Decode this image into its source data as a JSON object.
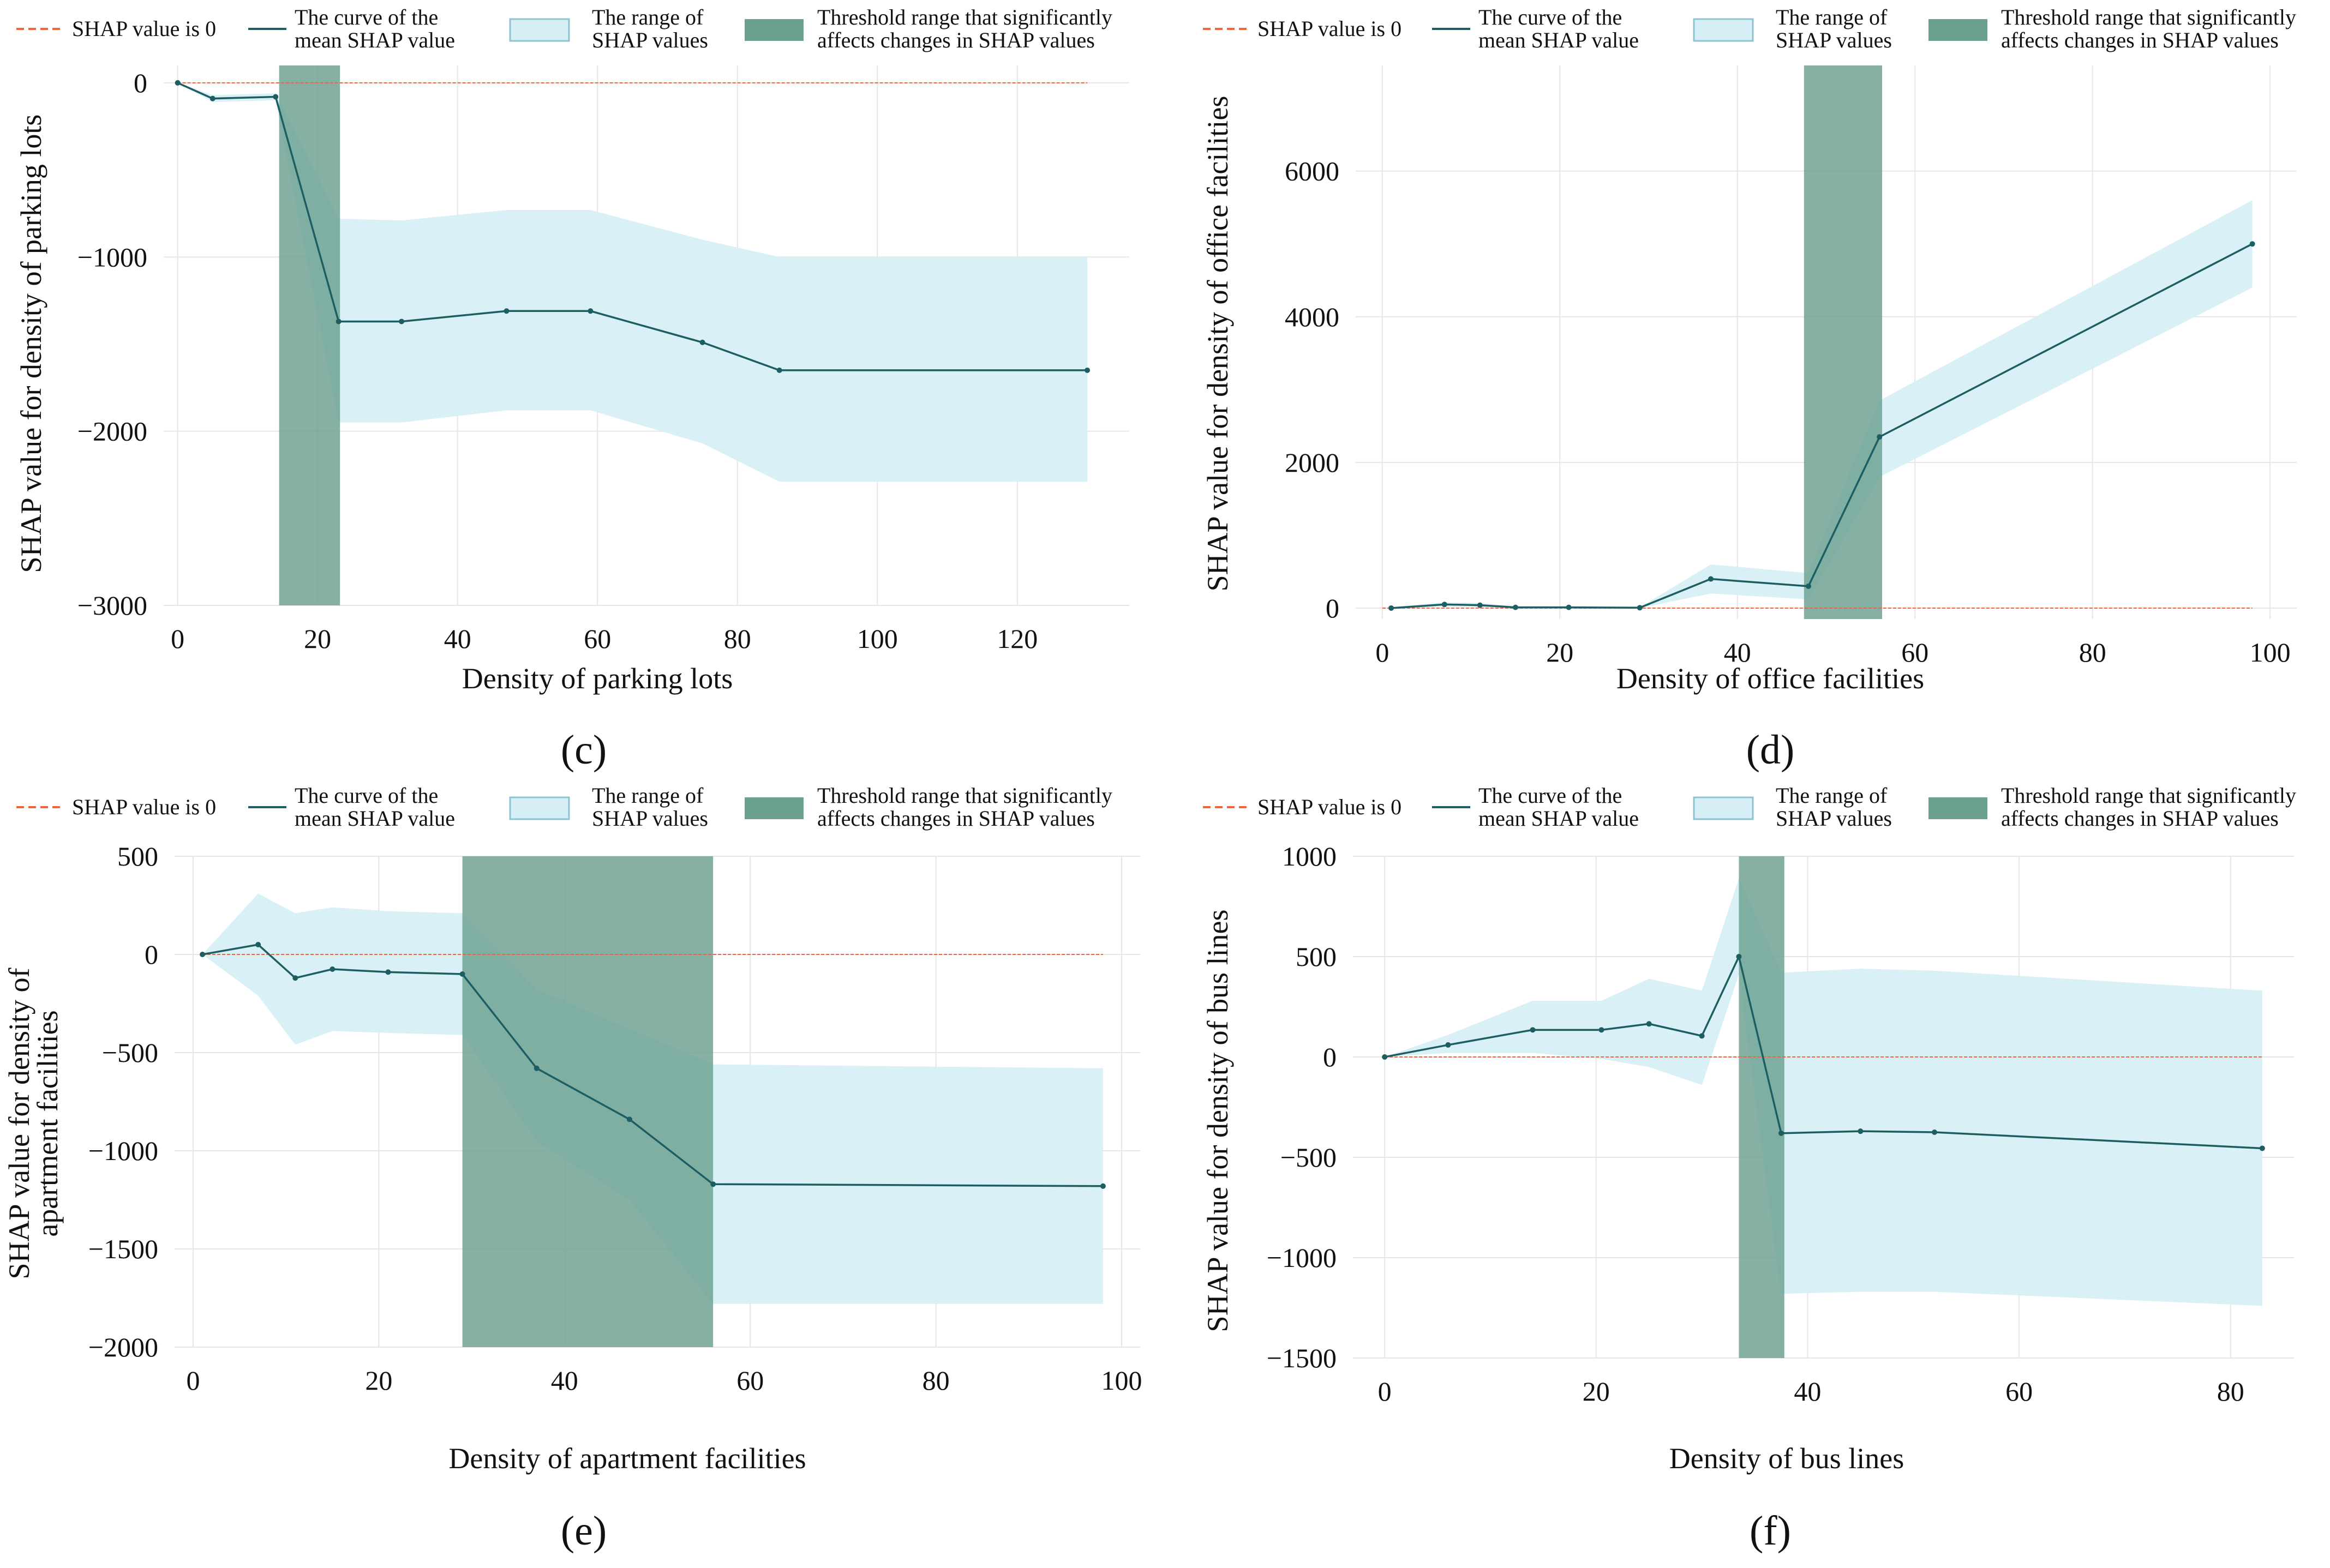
{
  "colors": {
    "zero_line": "#f2643a",
    "mean_curve": "#1c5e61",
    "range_fill": "#d6eff6",
    "range_stroke": "#8ec3cf",
    "threshold_fill": "#6b9f8f",
    "grid": "#e6e6e6",
    "text": "#111111"
  },
  "legend": {
    "zero_label": "SHAP value is 0",
    "mean_label_1": "The curve of the",
    "mean_label_2": "mean SHAP value",
    "range_label_1": "The range of",
    "range_label_2": "SHAP values",
    "threshold_label_1": "Threshold range that significantly",
    "threshold_label_2": "affects changes in SHAP values"
  },
  "chart_data": [
    {
      "panel": "(c)",
      "type": "line",
      "xlabel": "Density of parking lots",
      "ylabel": "SHAP value for density of parking lots",
      "xlim": [
        -2,
        136
      ],
      "ylim": [
        -3000,
        100
      ],
      "xticks": [
        0,
        20,
        40,
        60,
        80,
        100,
        120
      ],
      "yticks": [
        0,
        -1000,
        -2000,
        -3000
      ],
      "ytick_labels": [
        "0",
        "−1000",
        "−2000",
        "−3000"
      ],
      "zero_line_x": [
        0,
        130
      ],
      "mean_x": [
        0,
        5,
        14,
        23,
        32,
        47,
        59,
        75,
        86,
        130
      ],
      "mean_y": [
        0,
        -90,
        -80,
        -1370,
        -1370,
        -1310,
        -1310,
        -1490,
        -1650,
        -1650
      ],
      "range_x": [
        0,
        5,
        14,
        23,
        32,
        47,
        59,
        75,
        86,
        130
      ],
      "range_upper": [
        0,
        -70,
        -60,
        -780,
        -790,
        -730,
        -730,
        -900,
        -1000,
        -1000
      ],
      "range_lower": [
        0,
        -110,
        -100,
        -1950,
        -1950,
        -1880,
        -1880,
        -2070,
        -2290,
        -2290
      ],
      "threshold": [
        14.5,
        23.2
      ]
    },
    {
      "panel": "(d)",
      "type": "line",
      "xlabel": "Density of office facilities",
      "ylabel": "SHAP value for density of office facilities",
      "xlim": [
        -3,
        103
      ],
      "ylim": [
        -150,
        7450
      ],
      "xticks": [
        0,
        20,
        40,
        60,
        80,
        100
      ],
      "yticks": [
        0,
        2000,
        4000,
        6000
      ],
      "ytick_labels": [
        "0",
        "2000",
        "4000",
        "6000"
      ],
      "zero_line_x": [
        0,
        98
      ],
      "mean_x": [
        1,
        7,
        11,
        15,
        21,
        29,
        37,
        48,
        56,
        98
      ],
      "mean_y": [
        0,
        50,
        40,
        10,
        10,
        5,
        400,
        300,
        2350,
        5000
      ],
      "range_x": [
        1,
        7,
        11,
        15,
        21,
        29,
        37,
        48,
        56,
        98
      ],
      "range_upper": [
        10,
        80,
        70,
        20,
        20,
        10,
        600,
        480,
        2850,
        5600
      ],
      "range_lower": [
        -10,
        20,
        10,
        0,
        0,
        0,
        200,
        120,
        1800,
        4400
      ],
      "threshold": [
        47.5,
        56.3
      ]
    },
    {
      "panel": "(e)",
      "type": "line",
      "xlabel": "Density of apartment facilities",
      "ylabel_line1": "SHAP value for density of",
      "ylabel_line2": "apartment facilities",
      "xlim": [
        -2,
        102
      ],
      "ylim": [
        -2000,
        500
      ],
      "xticks": [
        0,
        20,
        40,
        60,
        80,
        100
      ],
      "yticks": [
        500,
        0,
        -500,
        -1000,
        -1500,
        -2000
      ],
      "ytick_labels": [
        "500",
        "0",
        "−500",
        "−1000",
        "−1500",
        "−2000"
      ],
      "zero_line_x": [
        1,
        98
      ],
      "mean_x": [
        1,
        7,
        11,
        15,
        21,
        29,
        37,
        47,
        56,
        98
      ],
      "mean_y": [
        0,
        50,
        -120,
        -75,
        -90,
        -100,
        -580,
        -840,
        -1170,
        -1180
      ],
      "range_x": [
        1,
        7,
        11,
        15,
        21,
        29,
        37,
        47,
        56,
        98
      ],
      "range_upper": [
        0,
        310,
        210,
        240,
        220,
        210,
        -180,
        -380,
        -560,
        -580
      ],
      "range_lower": [
        0,
        -210,
        -460,
        -390,
        -400,
        -410,
        -950,
        -1250,
        -1780,
        -1780
      ],
      "threshold": [
        29,
        56
      ]
    },
    {
      "panel": "(f)",
      "type": "line",
      "xlabel": "Density of bus lines",
      "ylabel": "SHAP value for density of bus lines",
      "xlim": [
        -3,
        86
      ],
      "ylim": [
        -1500,
        1000
      ],
      "xticks": [
        0,
        20,
        40,
        60,
        80
      ],
      "yticks": [
        1000,
        500,
        0,
        -500,
        -1000,
        -1500
      ],
      "ytick_labels": [
        "1000",
        "500",
        "0",
        "−500",
        "−1000",
        "−1500"
      ],
      "zero_line_x": [
        0,
        83
      ],
      "mean_x": [
        0,
        6,
        14,
        20.5,
        25,
        30,
        33.5,
        37.5,
        45,
        52,
        83
      ],
      "mean_y": [
        0,
        60,
        135,
        135,
        165,
        105,
        500,
        -380,
        -370,
        -375,
        -455
      ],
      "range_x": [
        0,
        6,
        14,
        20.5,
        25,
        30,
        33.5,
        37.5,
        45,
        52,
        83
      ],
      "range_upper": [
        0,
        110,
        280,
        280,
        390,
        330,
        890,
        420,
        440,
        430,
        330
      ],
      "range_lower": [
        0,
        20,
        20,
        -10,
        -50,
        -140,
        410,
        -1180,
        -1170,
        -1170,
        -1240
      ],
      "threshold": [
        33.5,
        37.8
      ]
    }
  ]
}
